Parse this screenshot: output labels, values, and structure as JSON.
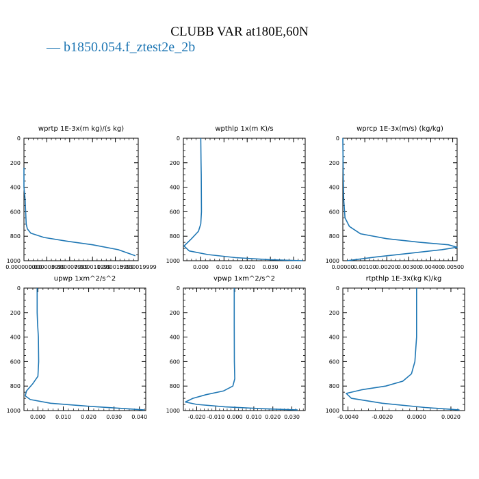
{
  "figure": {
    "title": "CLUBB VAR at180E,60N",
    "legend_label": "b1850.054.f_ztest2e_2b",
    "line_color": "#1f77b4"
  },
  "chart_data": [
    {
      "type": "line",
      "title": "wprtp  1E-3x(m kg)/(s kg)",
      "xlim": [
        0.0,
        2e-05
      ],
      "ylim": [
        1000,
        0
      ],
      "xticks": [
        0.0,
        4e-06,
        8e-06,
        1.2e-05,
        1.6e-05,
        2e-05
      ],
      "xtick_labels": [
        "0.000000000",
        "0.000003999",
        "0.000007999",
        "0.000011999",
        "0.000015999",
        "0.000019999"
      ],
      "yticks": [
        0,
        200,
        400,
        600,
        800,
        1000
      ],
      "ytick_labels": [
        "0",
        "200",
        "400",
        "600",
        "800",
        "1000"
      ],
      "series": [
        {
          "x": [
            0.0,
            0.0,
            2e-07,
            3e-07,
            4e-07,
            6e-07,
            1.2e-06,
            3.5e-06,
            7.5e-06,
            1.2e-05,
            1.65e-05,
            1.95e-05
          ],
          "y": [
            240,
            400,
            500,
            600,
            700,
            740,
            775,
            810,
            840,
            870,
            910,
            960
          ]
        }
      ]
    },
    {
      "type": "line",
      "title": "wpthlp  1x(m K)/s",
      "xlim": [
        -0.0075,
        0.045
      ],
      "ylim": [
        1000,
        0
      ],
      "xticks": [
        0.0,
        0.01,
        0.02,
        0.03,
        0.04
      ],
      "xtick_labels": [
        "0.000",
        "0.010",
        "0.020",
        "0.030",
        "0.040"
      ],
      "yticks": [
        0,
        200,
        400,
        600,
        800,
        1000
      ],
      "ytick_labels": [
        "0",
        "200",
        "400",
        "600",
        "800",
        "1000"
      ],
      "series": [
        {
          "x": [
            0.0,
            0.0001,
            0.0002,
            0.0003,
            0.0,
            -0.001,
            -0.004,
            -0.0072,
            -0.005,
            0.003,
            0.015,
            0.03,
            0.044
          ],
          "y": [
            0,
            200,
            300,
            600,
            700,
            760,
            820,
            880,
            920,
            950,
            975,
            992,
            1000
          ]
        }
      ]
    },
    {
      "type": "line",
      "title": "wprcp  1E-3x(m/s) (kg/kg)",
      "xlim": [
        0.0,
        0.0052
      ],
      "ylim": [
        1000,
        0
      ],
      "xticks": [
        0.0,
        0.001,
        0.002,
        0.003,
        0.004,
        0.005
      ],
      "xtick_labels": [
        "0.00000",
        "0.00100",
        "0.00200",
        "0.00300",
        "0.00400",
        "0.00500"
      ],
      "yticks": [
        0,
        200,
        400,
        600,
        800,
        1000
      ],
      "ytick_labels": [
        "0",
        "200",
        "400",
        "600",
        "800",
        "1000"
      ],
      "series": [
        {
          "x": [
            0.0,
            2e-05,
            4e-05,
            0.0001,
            0.0003,
            0.0008,
            0.002,
            0.0035,
            0.0048,
            0.0052,
            0.0045,
            0.003,
            0.0015,
            0.0002
          ],
          "y": [
            0,
            300,
            500,
            650,
            720,
            780,
            820,
            850,
            870,
            890,
            910,
            940,
            970,
            1000
          ]
        }
      ]
    },
    {
      "type": "line",
      "title": "upwp  1xm^2/s^2",
      "xlim": [
        -0.0055,
        0.0425
      ],
      "ylim": [
        1000,
        0
      ],
      "xticks": [
        0.0,
        0.01,
        0.02,
        0.03,
        0.04
      ],
      "xtick_labels": [
        "0.000",
        "0.010",
        "0.020",
        "0.030",
        "0.040"
      ],
      "yticks": [
        0,
        200,
        400,
        600,
        800,
        1000
      ],
      "ytick_labels": [
        "0",
        "200",
        "400",
        "600",
        "800",
        "1000"
      ],
      "series": [
        {
          "x": [
            -0.0003,
            -0.0003,
            -0.0001,
            0.0002,
            0.0003,
            0.0,
            -0.002,
            -0.0045,
            -0.005,
            -0.003,
            0.005,
            0.02,
            0.035,
            0.042
          ],
          "y": [
            0,
            200,
            300,
            400,
            600,
            720,
            780,
            840,
            880,
            910,
            940,
            965,
            985,
            995
          ]
        }
      ]
    },
    {
      "type": "line",
      "title": "vpwp  1xm^2/s^2",
      "xlim": [
        -0.027,
        0.037
      ],
      "ylim": [
        1000,
        0
      ],
      "xticks": [
        -0.02,
        -0.01,
        0.0,
        0.01,
        0.02,
        0.03
      ],
      "xtick_labels": [
        "-0.020",
        "-0.010",
        "0.000",
        "0.010",
        "0.020",
        "0.030"
      ],
      "yticks": [
        0,
        200,
        400,
        600,
        800,
        1000
      ],
      "ytick_labels": [
        "0",
        "200",
        "400",
        "600",
        "800",
        "1000"
      ],
      "series": [
        {
          "x": [
            -0.0003,
            -0.0003,
            -0.0002,
            0.0,
            -0.001,
            -0.006,
            -0.015,
            -0.022,
            -0.026,
            -0.02,
            -0.005,
            0.015,
            0.033
          ],
          "y": [
            0,
            300,
            600,
            740,
            800,
            840,
            870,
            900,
            930,
            950,
            970,
            985,
            995
          ]
        }
      ]
    },
    {
      "type": "line",
      "title": "rtpthlp  1E-3x(kg K)/kg",
      "xlim": [
        -0.0043,
        0.0028
      ],
      "ylim": [
        1000,
        0
      ],
      "xticks": [
        -0.004,
        -0.002,
        0.0,
        0.002
      ],
      "xtick_labels": [
        "-0.0040",
        "-0.0020",
        "0.0000",
        "0.0020"
      ],
      "yticks": [
        0,
        200,
        400,
        600,
        800,
        1000
      ],
      "ytick_labels": [
        "0",
        "200",
        "400",
        "600",
        "800",
        "1000"
      ],
      "series": [
        {
          "x": [
            0.0,
            0.0,
            -0.0001,
            -0.0003,
            -0.0008,
            -0.0018,
            -0.0032,
            -0.0041,
            -0.0038,
            -0.002,
            0.0005,
            0.0025
          ],
          "y": [
            0,
            400,
            600,
            700,
            760,
            800,
            830,
            860,
            900,
            940,
            975,
            995
          ]
        }
      ]
    }
  ]
}
